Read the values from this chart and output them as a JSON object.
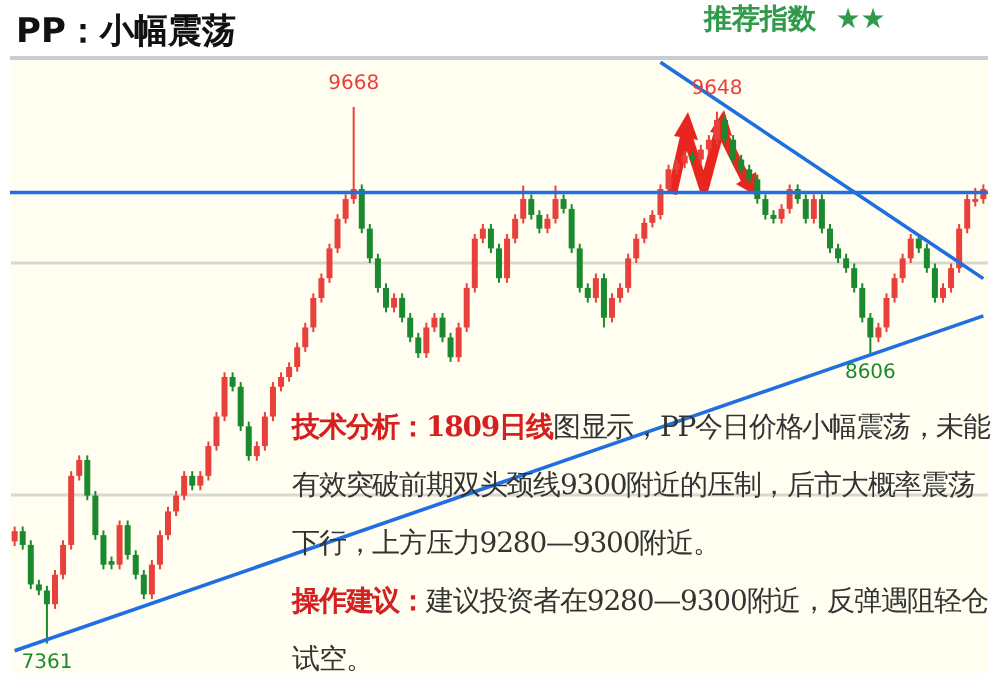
{
  "chart_data": {
    "type": "candlestick",
    "title": "PP：小幅震荡",
    "subtitle": "推荐指数  ★★",
    "categories": [
      null,
      null,
      null,
      null,
      null,
      null,
      null,
      null,
      null,
      null,
      null,
      null,
      null,
      null,
      null,
      null,
      null,
      null,
      null,
      null,
      null,
      null,
      null,
      null,
      null,
      null,
      null,
      null,
      null,
      null,
      null,
      null,
      null,
      null,
      null,
      null,
      null,
      null,
      null,
      null,
      null,
      null,
      null,
      null,
      null,
      null,
      null,
      null,
      null,
      null,
      null,
      null,
      null,
      null,
      null,
      null,
      null,
      null,
      null,
      null,
      null,
      null,
      null,
      null,
      null,
      null,
      null,
      null,
      null,
      null,
      null,
      null,
      null,
      null,
      null,
      null,
      null,
      null,
      null,
      null,
      null,
      null,
      null,
      null,
      null,
      null,
      null,
      null,
      null,
      null,
      null,
      null,
      null,
      null,
      null,
      null,
      null,
      null,
      null,
      null,
      null,
      null,
      null,
      null,
      null,
      null,
      null,
      null,
      null,
      null,
      null,
      null,
      null,
      null,
      null,
      null,
      null,
      null,
      null,
      null,
      null
    ],
    "ohlc": [
      [
        7800,
        7864,
        7780,
        7844
      ],
      [
        7844,
        7864,
        7765,
        7785
      ],
      [
        7785,
        7805,
        7595,
        7615
      ],
      [
        7615,
        7635,
        7569,
        7589
      ],
      [
        7589,
        7609,
        7361,
        7530
      ],
      [
        7530,
        7677,
        7510,
        7657
      ],
      [
        7657,
        7805,
        7637,
        7785
      ],
      [
        7785,
        8102,
        7765,
        8082
      ],
      [
        8082,
        8170,
        8062,
        8150
      ],
      [
        8150,
        8170,
        7977,
        7997
      ],
      [
        7997,
        8017,
        7807,
        7827
      ],
      [
        7827,
        7847,
        7680,
        7700
      ],
      [
        7715,
        7735,
        7680,
        7700
      ],
      [
        7700,
        7890,
        7680,
        7870
      ],
      [
        7870,
        7890,
        7722,
        7742
      ],
      [
        7742,
        7762,
        7637,
        7657
      ],
      [
        7657,
        7677,
        7552,
        7572
      ],
      [
        7572,
        7720,
        7552,
        7700
      ],
      [
        7700,
        7847,
        7680,
        7827
      ],
      [
        7827,
        7949,
        7807,
        7929
      ],
      [
        7929,
        8017,
        7909,
        7997
      ],
      [
        7997,
        8102,
        7977,
        8082
      ],
      [
        8082,
        8102,
        8020,
        8040
      ],
      [
        8040,
        8102,
        8020,
        8082
      ],
      [
        8082,
        8230,
        8062,
        8210
      ],
      [
        8210,
        8357,
        8190,
        8337
      ],
      [
        8337,
        8527,
        8317,
        8507
      ],
      [
        8507,
        8527,
        8445,
        8465
      ],
      [
        8465,
        8485,
        8275,
        8295
      ],
      [
        8295,
        8315,
        8147,
        8167
      ],
      [
        8167,
        8230,
        8147,
        8210
      ],
      [
        8210,
        8357,
        8190,
        8337
      ],
      [
        8337,
        8485,
        8317,
        8465
      ],
      [
        8465,
        8527,
        8445,
        8507
      ],
      [
        8507,
        8570,
        8487,
        8550
      ],
      [
        8550,
        8655,
        8530,
        8635
      ],
      [
        8635,
        8740,
        8615,
        8720
      ],
      [
        8720,
        8867,
        8700,
        8847
      ],
      [
        8847,
        8952,
        8827,
        8932
      ],
      [
        8932,
        9080,
        8912,
        9060
      ],
      [
        9060,
        9207,
        9040,
        9187
      ],
      [
        9187,
        9292,
        9167,
        9272
      ],
      [
        9272,
        9668,
        9252,
        9315
      ],
      [
        9315,
        9335,
        9125,
        9145
      ],
      [
        9145,
        9165,
        8997,
        9017
      ],
      [
        9017,
        9037,
        8870,
        8890
      ],
      [
        8890,
        8910,
        8785,
        8805
      ],
      [
        8805,
        8867,
        8785,
        8847
      ],
      [
        8847,
        8867,
        8742,
        8762
      ],
      [
        8762,
        8782,
        8657,
        8677
      ],
      [
        8677,
        8697,
        8589,
        8609
      ],
      [
        8609,
        8740,
        8589,
        8720
      ],
      [
        8720,
        8782,
        8700,
        8762
      ],
      [
        8762,
        8782,
        8657,
        8677
      ],
      [
        8677,
        8697,
        8572,
        8592
      ],
      [
        8592,
        8740,
        8572,
        8720
      ],
      [
        8720,
        8910,
        8700,
        8890
      ],
      [
        8890,
        9122,
        8870,
        9102
      ],
      [
        9102,
        9165,
        9082,
        9145
      ],
      [
        9145,
        9165,
        9040,
        9060
      ],
      [
        9060,
        9080,
        8912,
        8932
      ],
      [
        8932,
        9122,
        8912,
        9102
      ],
      [
        9102,
        9207,
        9082,
        9187
      ],
      [
        9187,
        9330,
        9167,
        9272
      ],
      [
        9272,
        9292,
        9184,
        9204
      ],
      [
        9204,
        9224,
        9125,
        9145
      ],
      [
        9145,
        9207,
        9125,
        9187
      ],
      [
        9187,
        9330,
        9167,
        9272
      ],
      [
        9272,
        9292,
        9210,
        9230
      ],
      [
        9230,
        9250,
        9040,
        9060
      ],
      [
        9060,
        9080,
        8870,
        8890
      ],
      [
        8890,
        8910,
        8827,
        8847
      ],
      [
        8847,
        8952,
        8827,
        8932
      ],
      [
        8932,
        8952,
        8720,
        8762
      ],
      [
        8762,
        8867,
        8742,
        8847
      ],
      [
        8847,
        8910,
        8827,
        8890
      ],
      [
        8890,
        9037,
        8870,
        9017
      ],
      [
        9017,
        9122,
        8997,
        9102
      ],
      [
        9102,
        9190,
        9082,
        9170
      ],
      [
        9170,
        9224,
        9150,
        9204
      ],
      [
        9204,
        9335,
        9184,
        9315
      ],
      [
        9315,
        9420,
        9295,
        9400
      ],
      [
        9400,
        9445,
        9380,
        9425
      ],
      [
        9425,
        9479,
        9405,
        9459
      ],
      [
        9459,
        9479,
        9422,
        9442
      ],
      [
        9442,
        9505,
        9422,
        9485
      ],
      [
        9485,
        9547,
        9465,
        9527
      ],
      [
        9527,
        9648,
        9507,
        9612
      ],
      [
        9612,
        9632,
        9507,
        9527
      ],
      [
        9527,
        9547,
        9422,
        9442
      ],
      [
        9442,
        9462,
        9380,
        9400
      ],
      [
        9400,
        9420,
        9337,
        9357
      ],
      [
        9357,
        9377,
        9252,
        9272
      ],
      [
        9272,
        9292,
        9184,
        9204
      ],
      [
        9204,
        9224,
        9167,
        9187
      ],
      [
        9187,
        9250,
        9167,
        9230
      ],
      [
        9230,
        9335,
        9210,
        9315
      ],
      [
        9315,
        9335,
        9252,
        9272
      ],
      [
        9272,
        9292,
        9167,
        9187
      ],
      [
        9187,
        9292,
        9167,
        9272
      ],
      [
        9272,
        9292,
        9125,
        9145
      ],
      [
        9145,
        9165,
        9040,
        9060
      ],
      [
        9060,
        9080,
        8997,
        9017
      ],
      [
        9017,
        9037,
        8955,
        8975
      ],
      [
        8975,
        8995,
        8870,
        8890
      ],
      [
        8890,
        8910,
        8742,
        8762
      ],
      [
        8762,
        8782,
        8606,
        8677
      ],
      [
        8677,
        8740,
        8657,
        8720
      ],
      [
        8720,
        8867,
        8700,
        8847
      ],
      [
        8847,
        8952,
        8827,
        8932
      ],
      [
        8932,
        9037,
        8912,
        9017
      ],
      [
        9017,
        9122,
        8997,
        9102
      ],
      [
        9102,
        9122,
        9040,
        9060
      ],
      [
        9060,
        9080,
        8955,
        8975
      ],
      [
        8975,
        8995,
        8827,
        8847
      ],
      [
        8847,
        8910,
        8827,
        8890
      ],
      [
        8890,
        8995,
        8870,
        8975
      ],
      [
        8975,
        9165,
        8955,
        9145
      ],
      [
        9145,
        9292,
        9125,
        9272
      ],
      [
        9260,
        9320,
        9240,
        9272
      ],
      [
        9272,
        9335,
        9252,
        9315
      ]
    ],
    "series": [
      {
        "type": "line",
        "color": "#1f6fe0",
        "values": [
          7330,
          null,
          null,
          null,
          null,
          null,
          null,
          null,
          null,
          null,
          null,
          null,
          null,
          null,
          null,
          null,
          null,
          null,
          null,
          null,
          null,
          null,
          null,
          null,
          null,
          null,
          null,
          null,
          null,
          null,
          null,
          null,
          null,
          null,
          null,
          null,
          null,
          null,
          null,
          null,
          null,
          null,
          null,
          null,
          null,
          null,
          null,
          null,
          null,
          null,
          null,
          null,
          null,
          null,
          null,
          null,
          null,
          null,
          null,
          null,
          null,
          null,
          null,
          null,
          null,
          null,
          null,
          null,
          null,
          null,
          null,
          null,
          null,
          null,
          null,
          null,
          null,
          null,
          null,
          null,
          null,
          null,
          null,
          null,
          null,
          null,
          null,
          null,
          null,
          null,
          null,
          null,
          null,
          null,
          null,
          null,
          null,
          null,
          null,
          null,
          null,
          null,
          null,
          null,
          null,
          null,
          null,
          null,
          null,
          null,
          null,
          null,
          null,
          null,
          null,
          null,
          null,
          null,
          null,
          null,
          8770
        ]
      },
      {
        "type": "line",
        "color": "#1f6fe0",
        "values": [
          null,
          null,
          null,
          null,
          null,
          null,
          null,
          null,
          null,
          null,
          null,
          null,
          null,
          null,
          null,
          null,
          null,
          null,
          null,
          null,
          null,
          null,
          null,
          null,
          null,
          null,
          null,
          null,
          null,
          null,
          null,
          null,
          null,
          null,
          null,
          null,
          null,
          null,
          null,
          null,
          null,
          null,
          null,
          null,
          null,
          null,
          null,
          null,
          null,
          null,
          null,
          null,
          null,
          null,
          null,
          null,
          null,
          null,
          null,
          null,
          null,
          null,
          null,
          null,
          null,
          null,
          null,
          null,
          null,
          null,
          null,
          null,
          null,
          null,
          null,
          null,
          null,
          null,
          null,
          null,
          9860,
          null,
          null,
          null,
          null,
          null,
          null,
          null,
          null,
          null,
          null,
          null,
          null,
          null,
          null,
          null,
          null,
          null,
          null,
          null,
          null,
          null,
          null,
          null,
          null,
          null,
          null,
          null,
          null,
          null,
          null,
          null,
          null,
          null,
          null,
          null,
          null,
          null,
          null,
          null,
          8930
        ]
      }
    ],
    "ref_lines": [
      {
        "axis": "y",
        "value": 9300,
        "color": "#1f6fe0"
      }
    ],
    "ylim": [
      7230,
      9870
    ],
    "yticks": [
      {
        "value": 8000,
        "label": null
      },
      {
        "value": 9000,
        "label": null
      }
    ],
    "grid": "y",
    "annotations": [
      {
        "text": "9668",
        "y": 9668
      },
      {
        "text": "9648",
        "y": 9648
      },
      {
        "text": "8606",
        "y": 8606
      },
      {
        "text": "7361",
        "y": 7361
      },
      "技术分析：1809日线图显示，PP今日价格小幅震荡，未能有效突破前期双头颈线9300附近的压制，后市大概率震荡下行，上方压力9280—9300附近。",
      "操作建议：建议投资者在9280—9300附近，反弹遇阻轻仓试空。"
    ]
  }
}
